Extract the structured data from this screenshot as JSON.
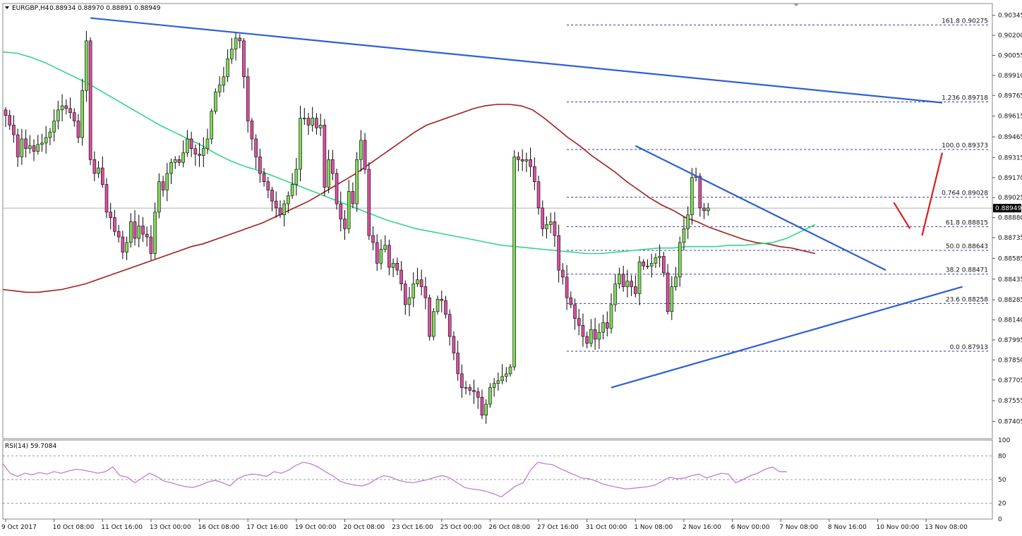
{
  "header": {
    "symbol": "EURGBP,H4",
    "ohlc": "0.88934 0.88970 0.88891 0.88949"
  },
  "rsi_header": "RSI(14) 59.7084",
  "current_price_label": "0.88949",
  "colors": {
    "bull": "#7ed957",
    "bear": "#d94fa0",
    "wick": "#000000",
    "trendline": "#2f5fd6",
    "ma_green": "#33d68a",
    "ma_red": "#a61c1c",
    "fib": "#3333aa",
    "arrow": "#e01b1b",
    "rsi": "#c47ad6"
  },
  "chart_data": [
    {
      "type": "candlestick",
      "title": "EURGBP,H4",
      "ylim": [
        0.8728,
        0.9043
      ],
      "y_ticks": [
        "0.90345",
        "0.90200",
        "0.90055",
        "0.89910",
        "0.89765",
        "0.89615",
        "0.89465",
        "0.89315",
        "0.89170",
        "0.89025",
        "0.88880",
        "0.88735",
        "0.88585",
        "0.88435",
        "0.88285",
        "0.88140",
        "0.87995",
        "0.87850",
        "0.87705",
        "0.87555",
        "0.87405"
      ],
      "x_ticks": [
        {
          "label": "9 Oct 2017",
          "i": 0
        },
        {
          "label": "10 Oct 08:00",
          "i": 12
        },
        {
          "label": "11 Oct 16:00",
          "i": 24
        },
        {
          "label": "13 Oct 00:00",
          "i": 36
        },
        {
          "label": "16 Oct 08:00",
          "i": 48
        },
        {
          "label": "17 Oct 16:00",
          "i": 60
        },
        {
          "label": "19 Oct 00:00",
          "i": 72
        },
        {
          "label": "20 Oct 08:00",
          "i": 84
        },
        {
          "label": "23 Oct 16:00",
          "i": 96
        },
        {
          "label": "25 Oct 00:00",
          "i": 108
        },
        {
          "label": "26 Oct 08:00",
          "i": 120
        },
        {
          "label": "27 Oct 16:00",
          "i": 132
        },
        {
          "label": "31 Oct 00:00",
          "i": 144
        },
        {
          "label": "1 Nov 08:00",
          "i": 156
        },
        {
          "label": "2 Nov 16:00",
          "i": 168
        },
        {
          "label": "6 Nov 00:00",
          "i": 180
        },
        {
          "label": "7 Nov 08:00",
          "i": 192
        },
        {
          "label": "8 Nov 16:00",
          "i": 204
        },
        {
          "label": "10 Nov 00:00",
          "i": 216
        },
        {
          "label": "13 Nov 08:00",
          "i": 228
        }
      ],
      "closes": [
        0.8962,
        0.8955,
        0.8948,
        0.8932,
        0.8945,
        0.8938,
        0.894,
        0.8936,
        0.8941,
        0.8942,
        0.8946,
        0.895,
        0.8958,
        0.8966,
        0.8969,
        0.8967,
        0.8964,
        0.8958,
        0.8946,
        0.898,
        0.9016,
        0.893,
        0.892,
        0.8924,
        0.8912,
        0.8892,
        0.8888,
        0.8878,
        0.8874,
        0.8863,
        0.887,
        0.8885,
        0.8873,
        0.8882,
        0.8876,
        0.8874,
        0.8862,
        0.8892,
        0.8914,
        0.8908,
        0.892,
        0.8928,
        0.893,
        0.8928,
        0.8935,
        0.8945,
        0.8938,
        0.8934,
        0.8933,
        0.8938,
        0.8945,
        0.8965,
        0.8979,
        0.8984,
        0.899,
        0.9003,
        0.901,
        0.9018,
        0.9016,
        0.899,
        0.8958,
        0.8945,
        0.8932,
        0.892,
        0.8914,
        0.8908,
        0.89,
        0.8895,
        0.889,
        0.8898,
        0.8904,
        0.8912,
        0.8923,
        0.896,
        0.896,
        0.8955,
        0.896,
        0.8953,
        0.8955,
        0.891,
        0.893,
        0.892,
        0.8898,
        0.8887,
        0.888,
        0.8907,
        0.8898,
        0.893,
        0.8944,
        0.8923,
        0.8875,
        0.887,
        0.8855,
        0.8865,
        0.8868,
        0.8852,
        0.8855,
        0.885,
        0.884,
        0.8825,
        0.883,
        0.884,
        0.8843,
        0.8838,
        0.883,
        0.8802,
        0.882,
        0.8829,
        0.8828,
        0.8818,
        0.8802,
        0.879,
        0.8775,
        0.8765,
        0.8765,
        0.8763,
        0.8762,
        0.8758,
        0.8745,
        0.8753,
        0.8765,
        0.8768,
        0.877,
        0.8773,
        0.8775,
        0.878,
        0.8932,
        0.893,
        0.8929,
        0.893,
        0.8925,
        0.8914,
        0.8895,
        0.888,
        0.8883,
        0.8885,
        0.8875,
        0.885,
        0.8845,
        0.883,
        0.8825,
        0.8815,
        0.881,
        0.8802,
        0.8797,
        0.8807,
        0.88,
        0.8805,
        0.8812,
        0.8808,
        0.8825,
        0.884,
        0.8847,
        0.8838,
        0.8842,
        0.8838,
        0.8833,
        0.8856,
        0.8853,
        0.8853,
        0.8855,
        0.8859,
        0.886,
        0.8848,
        0.882,
        0.8838,
        0.8845,
        0.887,
        0.888,
        0.889,
        0.8917,
        0.8918,
        0.8895,
        0.8893,
        0.8895
      ],
      "ma_slow": [
        0.8836,
        0.8835,
        0.8834,
        0.8834,
        0.8835,
        0.8836,
        0.8838,
        0.884,
        0.8843,
        0.8846,
        0.8849,
        0.8852,
        0.8855,
        0.8858,
        0.8861,
        0.8864,
        0.8867,
        0.8869,
        0.8872,
        0.8875,
        0.8878,
        0.8881,
        0.8884,
        0.8888,
        0.8892,
        0.8896,
        0.89,
        0.8905,
        0.891,
        0.8915,
        0.892,
        0.8926,
        0.8932,
        0.8938,
        0.8944,
        0.895,
        0.8955,
        0.8958,
        0.8961,
        0.8964,
        0.8967,
        0.8969,
        0.897,
        0.897,
        0.8969,
        0.8966,
        0.896,
        0.8953,
        0.8946,
        0.894,
        0.8933,
        0.8927,
        0.8921,
        0.8914,
        0.8908,
        0.8902,
        0.8897,
        0.8893,
        0.8888,
        0.8885,
        0.8881,
        0.8878,
        0.8875,
        0.8872,
        0.887,
        0.8869,
        0.8867,
        0.8866,
        0.8864,
        0.8862
      ],
      "ma_fast": [
        0.9008,
        0.9007,
        0.9004,
        0.9,
        0.8995,
        0.899,
        0.8985,
        0.8979,
        0.8973,
        0.8967,
        0.8961,
        0.8955,
        0.895,
        0.8945,
        0.894,
        0.8934,
        0.8929,
        0.8925,
        0.8922,
        0.8918,
        0.8914,
        0.891,
        0.8906,
        0.8902,
        0.8898,
        0.8894,
        0.889,
        0.8886,
        0.8883,
        0.888,
        0.8878,
        0.8876,
        0.8874,
        0.8872,
        0.887,
        0.8868,
        0.8867,
        0.8866,
        0.8865,
        0.8864,
        0.8863,
        0.8862,
        0.8862,
        0.8863,
        0.8864,
        0.8865,
        0.8866,
        0.8866,
        0.8867,
        0.8867,
        0.8867,
        0.8868,
        0.8868,
        0.8869,
        0.887,
        0.8873,
        0.8878,
        0.8883
      ]
    },
    {
      "type": "line",
      "title": "RSI(14) 59.7084",
      "ylim": [
        0,
        100
      ],
      "y_ticks": [
        "100",
        "80",
        "50",
        "20",
        "0"
      ],
      "levels": [
        80,
        50,
        20
      ],
      "values": [
        70,
        58,
        54,
        58,
        56,
        59,
        57,
        60,
        58,
        61,
        63,
        62,
        60,
        58,
        60,
        66,
        55,
        53,
        46,
        52,
        58,
        54,
        48,
        46,
        43,
        41,
        40,
        43,
        47,
        49,
        46,
        42,
        51,
        55,
        57,
        56,
        54,
        60,
        58,
        62,
        68,
        72,
        70,
        66,
        60,
        55,
        48,
        45,
        43,
        42,
        45,
        51,
        55,
        53,
        49,
        47,
        46,
        48,
        50,
        53,
        55,
        52,
        46,
        40,
        38,
        37,
        35,
        32,
        28,
        35,
        42,
        46,
        62,
        72,
        70,
        69,
        64,
        60,
        56,
        52,
        51,
        48,
        44,
        42,
        40,
        38,
        39,
        40,
        41,
        43,
        48,
        53,
        51,
        52,
        55,
        57,
        52,
        55,
        58,
        57,
        46,
        50,
        55,
        58,
        63,
        66,
        60,
        60
      ]
    },
    {
      "type": "annotations",
      "fibonacci": [
        {
          "label": "161.8",
          "value": "0.90275",
          "price": 0.90275
        },
        {
          "label": "1.236",
          "value": "0.89718",
          "price": 0.89718
        },
        {
          "label": "100.0",
          "value": "0.89373",
          "price": 0.89373
        },
        {
          "label": "0.764",
          "value": "0.89028",
          "price": 0.89028
        },
        {
          "label": "61.8",
          "value": "0.88815",
          "price": 0.88815
        },
        {
          "label": "50.0",
          "value": "0.88643",
          "price": 0.88643
        },
        {
          "label": "38.2",
          "value": "0.88471",
          "price": 0.88471
        },
        {
          "label": "23.6",
          "value": "0.88258",
          "price": 0.88258
        },
        {
          "label": "0.0",
          "value": "0.87913",
          "price": 0.87913
        }
      ],
      "trendlines": [
        {
          "name": "long-term-resistance",
          "from": {
            "i": 21,
            "price": 0.90325
          },
          "to": {
            "i": 232,
            "price": 0.89712
          }
        },
        {
          "name": "short-term-resistance",
          "from": {
            "i": 156,
            "price": 0.894
          },
          "to": {
            "i": 218,
            "price": 0.885
          }
        },
        {
          "name": "rising-support",
          "from": {
            "i": 150,
            "price": 0.8765
          },
          "to": {
            "i": 237,
            "price": 0.8838
          }
        }
      ],
      "arrows": [
        {
          "name": "down-arrow",
          "from": {
            "i": 220,
            "price": 0.8899
          },
          "to": {
            "i": 224,
            "price": 0.888
          }
        },
        {
          "name": "up-arrow",
          "from": {
            "i": 227,
            "price": 0.8875
          },
          "to": {
            "i": 232,
            "price": 0.8935
          }
        }
      ]
    }
  ]
}
